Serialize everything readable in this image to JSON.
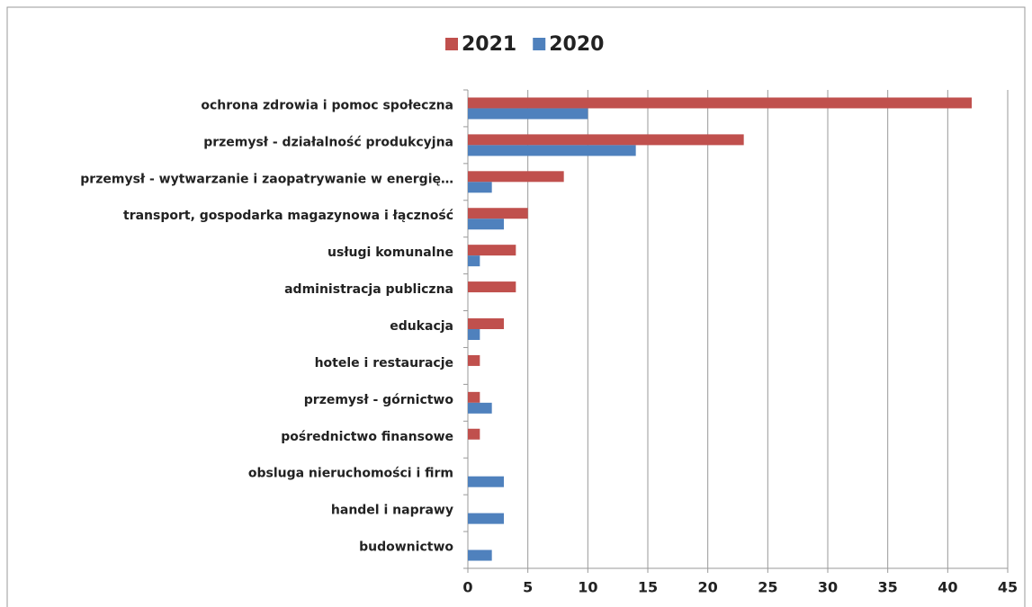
{
  "chart_data": {
    "type": "bar",
    "orientation": "horizontal",
    "categories": [
      "ochrona zdrowia i pomoc społeczna",
      "przemysł - działalność produkcyjna",
      "przemysł - wytwarzanie i zaopatrywanie w energię…",
      "transport, gospodarka magazynowa i łączność",
      "usługi komunalne",
      "administracja publiczna",
      "edukacja",
      "hotele i restauracje",
      "przemysł - górnictwo",
      "pośrednictwo finansowe",
      "obsluga nieruchomości i firm",
      "handel i naprawy",
      "budownictwo"
    ],
    "series": [
      {
        "name": "2021",
        "color": "#c0504d",
        "values": [
          42,
          23,
          8,
          5,
          4,
          4,
          3,
          1,
          1,
          1,
          0,
          0,
          0
        ]
      },
      {
        "name": "2020",
        "color": "#4f81bd",
        "values": [
          10,
          14,
          2,
          3,
          1,
          0,
          1,
          0,
          2,
          0,
          3,
          3,
          2
        ]
      }
    ],
    "xlim": [
      0,
      45
    ],
    "xticks": [
      0,
      5,
      10,
      15,
      20,
      25,
      30,
      35,
      40,
      45
    ],
    "grid": true,
    "legend": "top"
  }
}
